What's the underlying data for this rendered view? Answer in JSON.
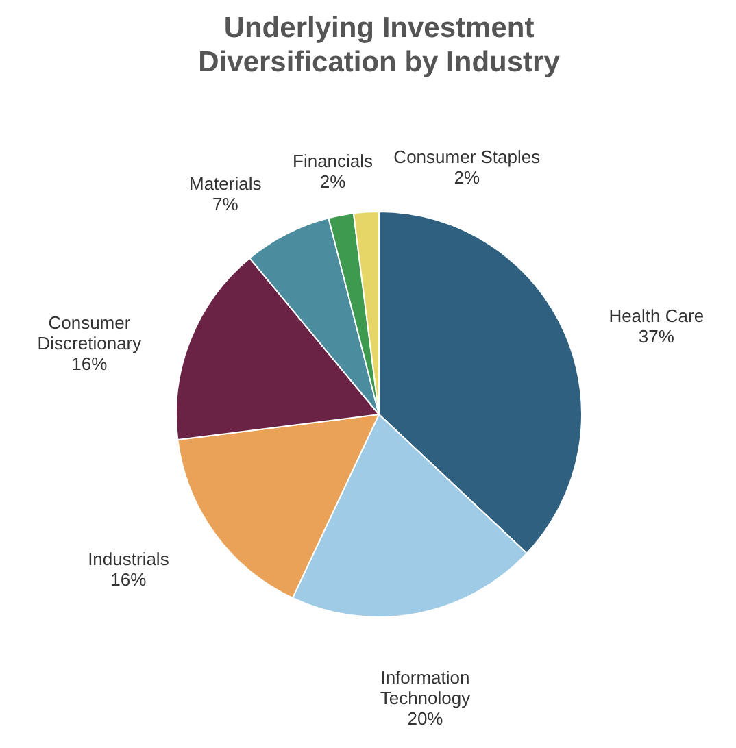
{
  "chart_data": {
    "type": "pie",
    "title": "Underlying Investment Diversification by Industry",
    "categories": [
      "Health Care",
      "Information Technology",
      "Industrials",
      "Consumer Discretionary",
      "Materials",
      "Financials",
      "Consumer Staples"
    ],
    "values": [
      37,
      20,
      16,
      16,
      7,
      2,
      2
    ],
    "value_labels": [
      "37%",
      "20%",
      "16%",
      "16%",
      "7%",
      "2%",
      "2%"
    ],
    "colors": [
      "#2f6080",
      "#9fcbe6",
      "#e9a258",
      "#6a2345",
      "#4b8c9e",
      "#3e9a4e",
      "#e6d667"
    ]
  }
}
